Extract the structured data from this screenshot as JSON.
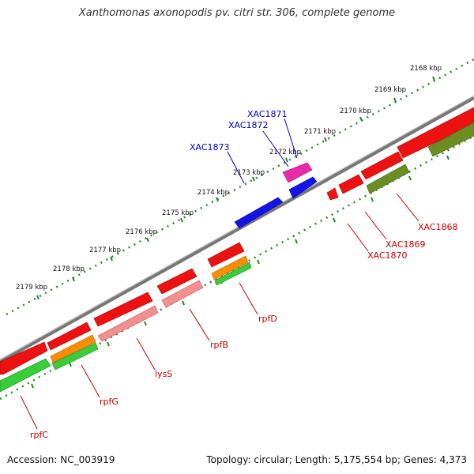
{
  "title": "Xanthomonas axonopodis pv. citri str. 306, complete genome",
  "footer": {
    "accession": "Accession: NC_003919",
    "summary": "Topology: circular; Length: 5,175,554 bp; Genes: 4,373"
  },
  "scale_ticks": [
    "2168 kbp",
    "2169 kbp",
    "2170 kbp",
    "2171 kbp",
    "2172 kbp",
    "2173 kbp",
    "2174 kbp",
    "2175 kbp",
    "2176 kbp",
    "2177 kbp",
    "2178 kbp",
    "2179 kbp"
  ],
  "gene_labels_forward": [
    "XAC1871",
    "XAC1872",
    "XAC1873"
  ],
  "gene_labels_reverse": [
    "XAC1868",
    "XAC1869",
    "XAC1870",
    "rpfD",
    "rpfB",
    "lysS",
    "rpfG",
    "rpfC"
  ],
  "colors": {
    "backbone": "#888888",
    "forward_label": "#0000cc",
    "reverse_label": "#cc0000",
    "cds": "#ee0000",
    "cds_light": "#f08080",
    "magenta": "#ee22aa",
    "blue": "#1010ee",
    "olive": "#6b8e23",
    "orange": "#ff8800",
    "green": "#33cc33",
    "tick": "#228822"
  }
}
